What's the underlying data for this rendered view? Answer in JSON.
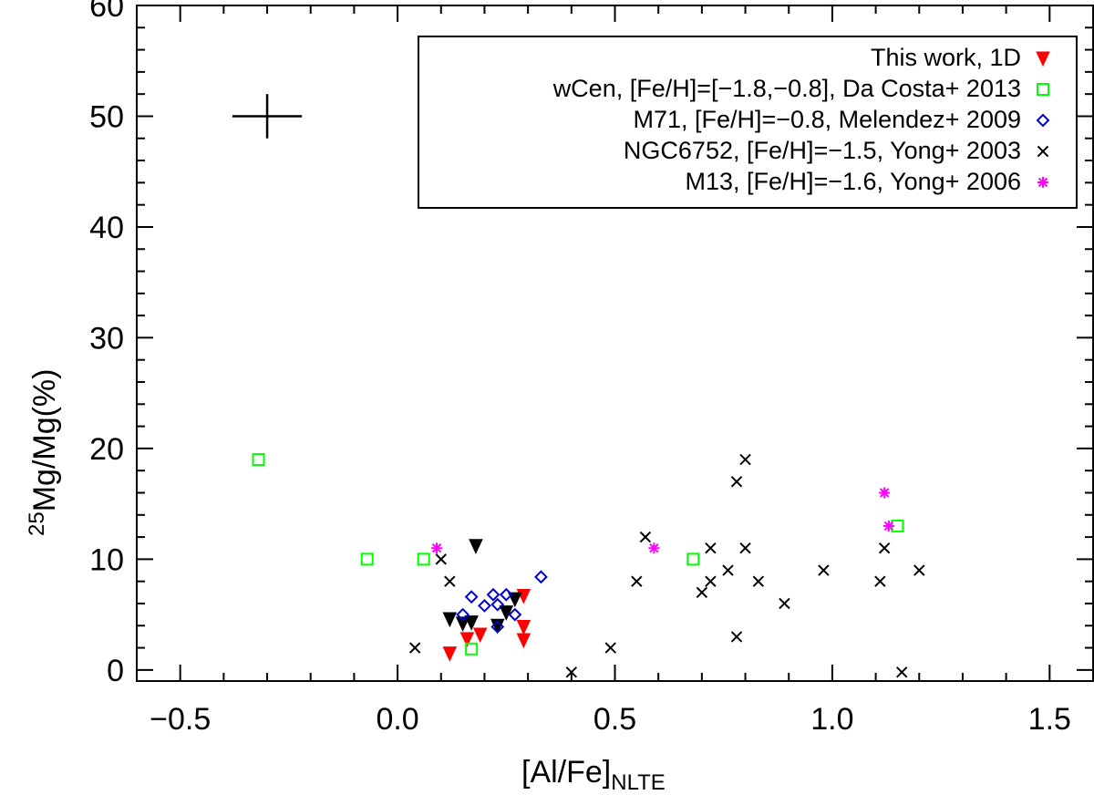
{
  "chart_data": {
    "type": "scatter",
    "xlabel": {
      "main": "[Al/Fe]",
      "sub": "NLTE"
    },
    "ylabel": {
      "sup": "25",
      "main": "Mg/Mg(%)"
    },
    "xlim": [
      -0.6,
      1.6
    ],
    "ylim": [
      -1,
      60
    ],
    "xticks": [
      -0.5,
      0.0,
      0.5,
      1.0,
      1.5
    ],
    "xtick_labels": [
      "−0.5",
      "0.0",
      "0.5",
      "1.0",
      "1.5"
    ],
    "yticks": [
      0,
      10,
      20,
      30,
      40,
      50,
      60
    ],
    "ytick_labels": [
      "0",
      "10",
      "20",
      "30",
      "40",
      "50",
      "60"
    ],
    "grid": false,
    "legend_position": "top-right",
    "typical_error": {
      "x": -0.3,
      "y": 50,
      "xerr": 0.08,
      "yerr": 2
    },
    "series": [
      {
        "name": "This work, 1D",
        "marker": "triangle-down",
        "color": "#ff0000",
        "points": [
          {
            "x": 0.12,
            "y": 1.5
          },
          {
            "x": 0.16,
            "y": 2.8
          },
          {
            "x": 0.19,
            "y": 3.2
          },
          {
            "x": 0.29,
            "y": 2.7
          },
          {
            "x": 0.29,
            "y": 3.9
          },
          {
            "x": 0.29,
            "y": 6.7
          }
        ]
      },
      {
        "name": "",
        "marker": "triangle-down",
        "color": "#000000",
        "points": [
          {
            "x": 0.12,
            "y": 4.6
          },
          {
            "x": 0.15,
            "y": 4.2
          },
          {
            "x": 0.17,
            "y": 4.3
          },
          {
            "x": 0.18,
            "y": 11.2
          },
          {
            "x": 0.23,
            "y": 4.0
          },
          {
            "x": 0.25,
            "y": 5.2
          },
          {
            "x": 0.27,
            "y": 6.4
          }
        ]
      },
      {
        "name": "wCen, [Fe/H]=[−1.8,−0.8], Da Costa+ 2013",
        "marker": "square-open",
        "color": "#00ff00",
        "points": [
          {
            "x": -0.32,
            "y": 19
          },
          {
            "x": -0.07,
            "y": 10
          },
          {
            "x": 0.06,
            "y": 10
          },
          {
            "x": 0.17,
            "y": 1.9
          },
          {
            "x": 0.68,
            "y": 10
          },
          {
            "x": 1.15,
            "y": 13
          }
        ]
      },
      {
        "name": "M71, [Fe/H]=−0.8, Melendez+ 2009",
        "marker": "diamond-open",
        "color": "#0000cc",
        "points": [
          {
            "x": 0.15,
            "y": 5.0
          },
          {
            "x": 0.17,
            "y": 6.6
          },
          {
            "x": 0.2,
            "y": 5.8
          },
          {
            "x": 0.22,
            "y": 6.8
          },
          {
            "x": 0.23,
            "y": 5.9
          },
          {
            "x": 0.25,
            "y": 6.8
          },
          {
            "x": 0.27,
            "y": 5.0
          },
          {
            "x": 0.23,
            "y": 3.9
          },
          {
            "x": 0.33,
            "y": 8.4
          }
        ]
      },
      {
        "name": "NGC6752, [Fe/H]=−1.5, Yong+ 2003",
        "marker": "x",
        "color": "#000000",
        "points": [
          {
            "x": 0.04,
            "y": 2.0
          },
          {
            "x": 0.1,
            "y": 10
          },
          {
            "x": 0.12,
            "y": 8
          },
          {
            "x": 0.4,
            "y": -0.2
          },
          {
            "x": 0.49,
            "y": 2.0
          },
          {
            "x": 0.55,
            "y": 8
          },
          {
            "x": 0.57,
            "y": 12
          },
          {
            "x": 0.7,
            "y": 7
          },
          {
            "x": 0.72,
            "y": 8
          },
          {
            "x": 0.72,
            "y": 11
          },
          {
            "x": 0.76,
            "y": 9
          },
          {
            "x": 0.78,
            "y": 17
          },
          {
            "x": 0.78,
            "y": 3.0
          },
          {
            "x": 0.8,
            "y": 19
          },
          {
            "x": 0.8,
            "y": 11
          },
          {
            "x": 0.83,
            "y": 8
          },
          {
            "x": 0.89,
            "y": 6
          },
          {
            "x": 0.98,
            "y": 9
          },
          {
            "x": 1.11,
            "y": 8
          },
          {
            "x": 1.12,
            "y": 11
          },
          {
            "x": 1.16,
            "y": -0.2
          },
          {
            "x": 1.2,
            "y": 9
          }
        ]
      },
      {
        "name": "M13, [Fe/H]=−1.6, Yong+ 2006",
        "marker": "asterisk",
        "color": "#ff00ff",
        "points": [
          {
            "x": 0.09,
            "y": 11
          },
          {
            "x": 0.59,
            "y": 11
          },
          {
            "x": 1.12,
            "y": 16
          },
          {
            "x": 1.13,
            "y": 13
          }
        ]
      }
    ]
  }
}
